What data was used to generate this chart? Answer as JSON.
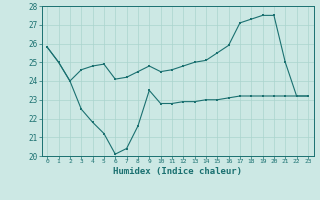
{
  "xlabel": "Humidex (Indice chaleur)",
  "xlim": [
    -0.5,
    23.5
  ],
  "ylim": [
    20,
    28
  ],
  "yticks": [
    20,
    21,
    22,
    23,
    24,
    25,
    26,
    27,
    28
  ],
  "xticks": [
    0,
    1,
    2,
    3,
    4,
    5,
    6,
    7,
    8,
    9,
    10,
    11,
    12,
    13,
    14,
    15,
    16,
    17,
    18,
    19,
    20,
    21,
    22,
    23
  ],
  "bg_color": "#cce8e4",
  "plot_bg_color": "#cce8e4",
  "line_color": "#1a7070",
  "grid_color": "#aad4ce",
  "line1_x": [
    0,
    1,
    2,
    3,
    4,
    5,
    6,
    7,
    8,
    9,
    10,
    11,
    12,
    13,
    14,
    15,
    16,
    17,
    18,
    19,
    20,
    21,
    22,
    23
  ],
  "line1_y": [
    25.8,
    25.0,
    24.0,
    24.6,
    24.8,
    24.9,
    24.1,
    24.2,
    24.5,
    24.8,
    24.5,
    24.6,
    24.8,
    25.0,
    25.1,
    25.5,
    25.9,
    27.1,
    27.3,
    27.5,
    27.5,
    25.0,
    23.2,
    23.2
  ],
  "line2_x": [
    0,
    1,
    2,
    3,
    4,
    5,
    6,
    7,
    8,
    9,
    10,
    11,
    12,
    13,
    14,
    15,
    16,
    17,
    18,
    19,
    20,
    21,
    22,
    23
  ],
  "line2_y": [
    25.8,
    25.0,
    24.0,
    22.5,
    21.8,
    21.2,
    20.1,
    20.4,
    21.6,
    23.5,
    22.8,
    22.8,
    22.9,
    22.9,
    23.0,
    23.0,
    23.1,
    23.2,
    23.2,
    23.2,
    23.2,
    23.2,
    23.2,
    23.2
  ]
}
